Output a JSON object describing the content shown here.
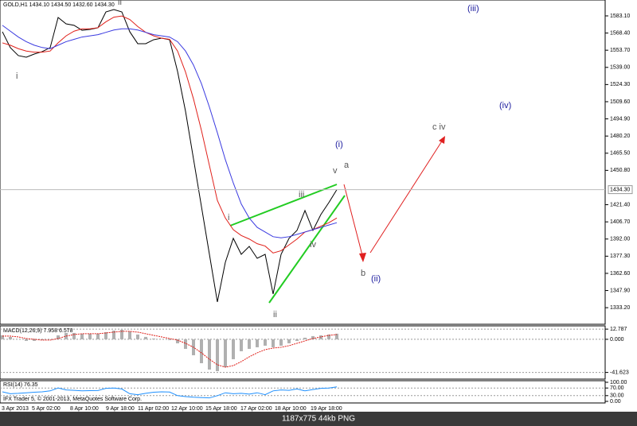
{
  "chart_data": [
    {
      "type": "line",
      "title": "GOLD,H1  1434.10 1434.50 1432.60 1434.30",
      "x_labels": [
        "3 Apr 2013",
        "5 Apr 02:00",
        "8 Apr 10:00",
        "9 Apr 18:00",
        "11 Apr 02:00",
        "12 Apr 10:00",
        "15 Apr 18:00",
        "17 Apr 02:00",
        "18 Apr 10:00",
        "19 Apr 18:00"
      ],
      "ylim": [
        1319,
        1596.7
      ],
      "yticks": [
        {
          "value": 1583.1,
          "label": "1583.10"
        },
        {
          "value": 1568.4,
          "label": "1568.40"
        },
        {
          "value": 1553.7,
          "label": "1553.70"
        },
        {
          "value": 1539,
          "label": "1539.00"
        },
        {
          "value": 1524.3,
          "label": "1524.30"
        },
        {
          "value": 1509.6,
          "label": "1509.60"
        },
        {
          "value": 1494.9,
          "label": "1494.90"
        },
        {
          "value": 1480.2,
          "label": "1480.20"
        },
        {
          "value": 1465.5,
          "label": "1465.50"
        },
        {
          "value": 1450.8,
          "label": "1450.80"
        },
        {
          "value": 1421.4,
          "label": "1421.40"
        },
        {
          "value": 1406.7,
          "label": "1406.70"
        },
        {
          "value": 1392,
          "label": "1392.00"
        },
        {
          "value": 1377.3,
          "label": "1377.30"
        },
        {
          "value": 1362.6,
          "label": "1362.60"
        },
        {
          "value": 1347.9,
          "label": "1347.90"
        },
        {
          "value": 1333.2,
          "label": "1333.20"
        }
      ],
      "last_price": {
        "value": 1434.3,
        "label": "1434.30"
      },
      "series": [
        {
          "color": "#000000",
          "values": [
            1569.5,
            1555.9,
            1549.1,
            1547.7,
            1550.4,
            1552.5,
            1555.9,
            1581.7,
            1576.3,
            1575.0,
            1570.8,
            1571.5,
            1572.9,
            1586.5,
            1588.5,
            1586.5,
            1569.5,
            1559.3,
            1559.3,
            1562.7,
            1564.0,
            1562.7,
            1535.5,
            1501.4,
            1460.6,
            1419.8,
            1378.9,
            1338.1,
            1372.1,
            1392.6,
            1378.9,
            1385.7,
            1375.5,
            1378.9,
            1344.9,
            1378.9,
            1392.6,
            1399.4,
            1416.4,
            1399.4,
            1413.0,
            1423.2,
            1434.3
          ]
        },
        {
          "color": "#e0201a",
          "values": [
            1560,
            1558,
            1555,
            1553,
            1552,
            1552,
            1553,
            1560,
            1566,
            1570,
            1572,
            1572,
            1573,
            1578,
            1582,
            1583,
            1580,
            1574,
            1569,
            1566,
            1564,
            1563,
            1553,
            1535,
            1512,
            1485,
            1455,
            1425,
            1410,
            1400,
            1395,
            1392,
            1388,
            1386,
            1380,
            1382,
            1387,
            1392,
            1398,
            1400,
            1403,
            1406,
            1410
          ]
        },
        {
          "color": "#3a3ae0",
          "values": [
            1575,
            1570,
            1565,
            1561,
            1558,
            1556,
            1555,
            1558,
            1561,
            1563,
            1565,
            1566,
            1567,
            1569,
            1571,
            1572,
            1572,
            1571,
            1569,
            1567,
            1566,
            1565,
            1561,
            1553,
            1541,
            1525,
            1505,
            1483,
            1460,
            1440,
            1422,
            1410,
            1402,
            1398,
            1394,
            1393,
            1394,
            1396,
            1398,
            1400,
            1402,
            1404,
            1406
          ]
        }
      ],
      "annotations": [
        {
          "text": "i",
          "color": "#555555"
        },
        {
          "text": "ii",
          "color": "#555555"
        },
        {
          "text": "(iii)",
          "color": "#2020a0"
        },
        {
          "text": "(iv)",
          "color": "#2020a0"
        },
        {
          "text": "c  iv",
          "color": "#555555"
        },
        {
          "text": "(i)",
          "color": "#2020a0"
        },
        {
          "text": "a",
          "color": "#555555"
        },
        {
          "text": "v",
          "color": "#555555"
        },
        {
          "text": "iii",
          "color": "#555555"
        },
        {
          "text": "i",
          "color": "#555555"
        },
        {
          "text": "iv",
          "color": "#555555"
        },
        {
          "text": "ii",
          "color": "#555555"
        },
        {
          "text": "b",
          "color": "#555555"
        },
        {
          "text": "(ii)",
          "color": "#2020a0"
        }
      ]
    },
    {
      "type": "bar",
      "title": "MACD(12,26,9) 7.958 6.578",
      "ylim": [
        -50,
        16.9
      ],
      "yticks": [
        12.787,
        {
          "value": 0,
          "label": "0.000"
        },
        -41.623
      ],
      "series": [
        {
          "color": "#b0b0b0",
          "values": [
            5,
            3,
            0,
            -2,
            -2,
            -1,
            0,
            5,
            8,
            8,
            7,
            7,
            7,
            9,
            11,
            12,
            10,
            6,
            3,
            1,
            0,
            -1,
            -5,
            -12,
            -20,
            -30,
            -38,
            -40,
            -35,
            -25,
            -15,
            -12,
            -10,
            -8,
            -10,
            -8,
            -5,
            -2,
            2,
            4,
            5,
            6,
            7
          ]
        },
        {
          "color": "#e0201a",
          "values": [
            4,
            4,
            3,
            1,
            0,
            -1,
            -1,
            1,
            4,
            6,
            7,
            7,
            7,
            8,
            9,
            10,
            10,
            9,
            7,
            5,
            3,
            1,
            -1,
            -5,
            -10,
            -17,
            -25,
            -32,
            -35,
            -33,
            -28,
            -22,
            -17,
            -13,
            -11,
            -10,
            -8,
            -5,
            -2,
            1,
            3,
            5,
            6
          ]
        }
      ]
    },
    {
      "type": "line",
      "title": "RSI(14) 76.35",
      "ylim": [
        0,
        100
      ],
      "yticks": [
        {
          "value": 100,
          "label": "100.00"
        },
        {
          "value": 70,
          "label": "70.00"
        },
        {
          "value": 30,
          "label": "30.00"
        },
        {
          "value": 0,
          "label": "0.00"
        }
      ],
      "copyright": "IFX Trader 5, © 2001-2013, MetaQuotes Software Corp.",
      "series": [
        {
          "color": "#1e90ff",
          "values": [
            50,
            40,
            42,
            45,
            48,
            50,
            55,
            70,
            60,
            58,
            55,
            56,
            57,
            68,
            70,
            65,
            40,
            35,
            42,
            48,
            50,
            49,
            30,
            25,
            22,
            20,
            18,
            30,
            45,
            40,
            42,
            38,
            45,
            35,
            55,
            60,
            58,
            65,
            55,
            62,
            68,
            70,
            76
          ]
        }
      ]
    }
  ],
  "viewer_caption": "1187x775  44kb  PNG"
}
